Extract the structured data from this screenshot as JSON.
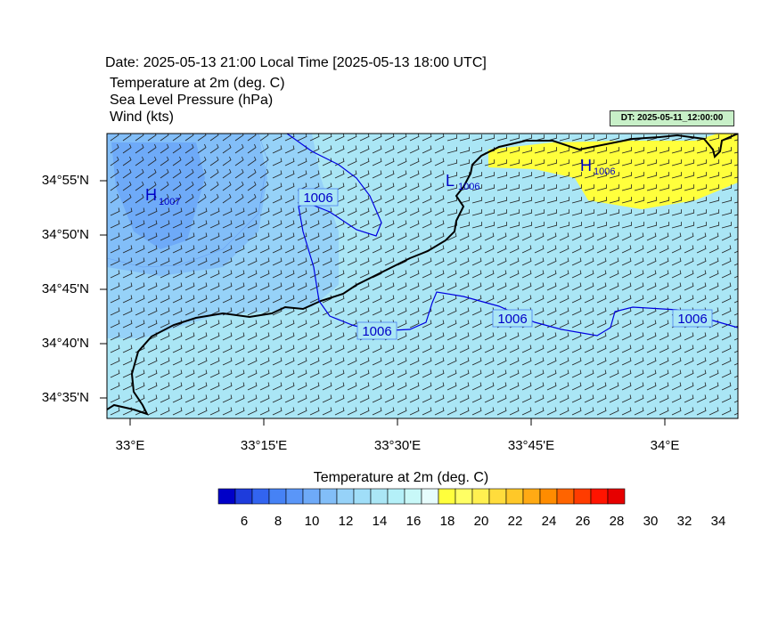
{
  "header": {
    "date_line": "Date: 2025-05-13  21:00 Local Time [2025-05-13  18:00 UTC]",
    "field1": "Temperature at 2m   (deg. C)",
    "field2": "Sea Level Pressure   (hPa)",
    "field3": "Wind   (kts)",
    "dt_badge": "DT: 2025-05-11_12:00:00"
  },
  "axes": {
    "lat_labels": [
      "34°55'N",
      "34°50'N",
      "34°45'N",
      "34°40'N",
      "34°35'N"
    ],
    "lon_labels": [
      "33°E",
      "33°15'E",
      "33°30'E",
      "33°45'E",
      "34°E"
    ]
  },
  "pressure": {
    "contour_labels": [
      "1006",
      "1006",
      "1006",
      "1006"
    ],
    "centers": [
      {
        "letter": "H",
        "value": "1007"
      },
      {
        "letter": "L",
        "value": "1006"
      },
      {
        "letter": "H",
        "value": "1006"
      }
    ]
  },
  "colorbar": {
    "title": "Temperature at 2m  (deg. C)",
    "tick_labels": [
      "6",
      "8",
      "10",
      "12",
      "14",
      "16",
      "18",
      "20",
      "22",
      "24",
      "26",
      "28",
      "30",
      "32",
      "34"
    ],
    "colors": [
      "#0000c8",
      "#1e3cdc",
      "#3264f0",
      "#4682f5",
      "#5a96f8",
      "#6eaaf8",
      "#82bef8",
      "#96d2f8",
      "#a0def8",
      "#aae6f5",
      "#b4f0f8",
      "#c8f8f8",
      "#e6fcfc",
      "#ffff3c",
      "#ffff64",
      "#fff050",
      "#ffdc3c",
      "#ffc828",
      "#ffaa14",
      "#ff8c00",
      "#ff6400",
      "#ff3c00",
      "#ff1400",
      "#e60000"
    ]
  }
}
